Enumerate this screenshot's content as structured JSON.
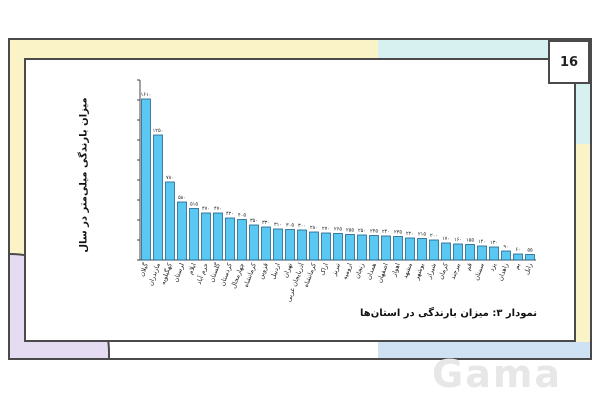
{
  "page_number": "16",
  "watermark": "Gama",
  "caption": "نمودار ۳: میزان بارندگی در استان‌ها",
  "colors": {
    "bar": "#59c8f2",
    "bar_stroke": "#1f5f86",
    "axis": "#444444"
  },
  "chart_data": {
    "type": "bar",
    "title": "",
    "xlabel": "",
    "ylabel": "میزان بارندگی میلی‌متر در سال",
    "ylim": [
      0,
      1800
    ],
    "grid": false,
    "categories": [
      "گیلان",
      "مازندران",
      "کهگیلویه",
      "لرستان",
      "ایلام",
      "خرم آباد",
      "گلستان",
      "کردستان",
      "چهارمحال",
      "کرمانشاه",
      "قزوین",
      "اردبیل",
      "تهران",
      "آذربایجان غربی",
      "کرمانشاه",
      "اراک",
      "تبریز",
      "ارومیه",
      "زنجان",
      "همدان",
      "اصفهان",
      "اهواز",
      "مشهد",
      "بوشهر",
      "شیراز",
      "کرمان",
      "بیرجند",
      "قم",
      "سمنان",
      "یزد",
      "زاهدان",
      "بم",
      "زابل"
    ],
    "values": [
      1610,
      1250,
      780,
      580,
      515,
      470,
      470,
      420,
      405,
      350,
      330,
      310,
      305,
      300,
      280,
      270,
      265,
      255,
      250,
      245,
      240,
      235,
      220,
      215,
      200,
      170,
      160,
      155,
      140,
      130,
      90,
      60,
      55
    ],
    "data_labels": [
      "۱۶۱۰",
      "۱۲۵۰",
      "۷۸۰",
      "۵۸۰",
      "۵۱۵",
      "۴۷۰",
      "۴۷۰",
      "۴۲۰",
      "۴۰۵",
      "۳۵۰",
      "۳۳۰",
      "۳۱۰",
      "۳۰۵",
      "۳۰۰",
      "۲۸۰",
      "۲۷۰",
      "۲۶۵",
      "۲۵۵",
      "۲۵۰",
      "۲۴۵",
      "۲۴۰",
      "۲۳۵",
      "۲۲۰",
      "۲۱۵",
      "۲۰۰",
      "۱۷۰",
      "۱۶۰",
      "۱۵۵",
      "۱۴۰",
      "۱۳۰",
      "۹۰",
      "۶۰",
      "۵۵"
    ]
  }
}
